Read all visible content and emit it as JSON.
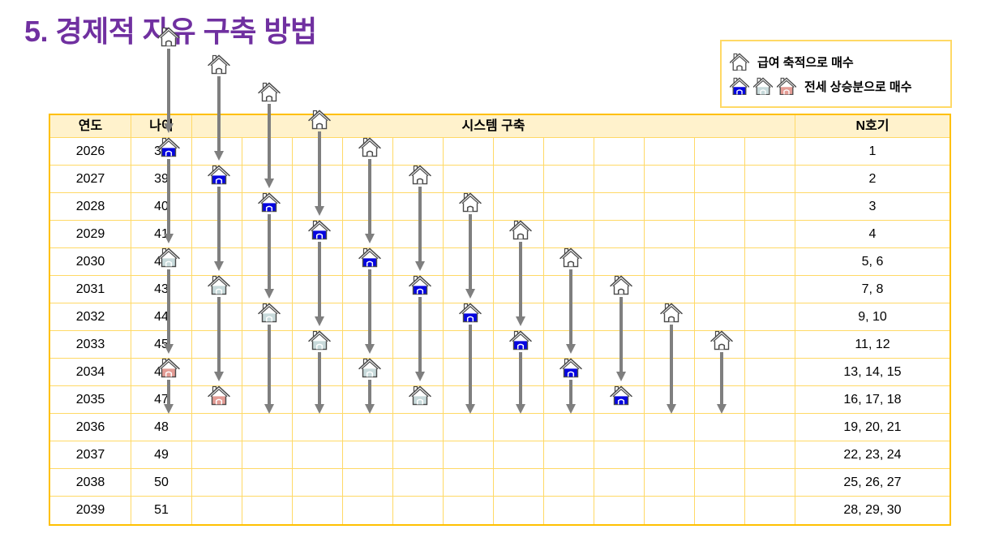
{
  "title": "5. 경제적 자유 구축 방법",
  "legend": {
    "items": [
      {
        "icons": [
          "white"
        ],
        "label": "급여 축적으로 매수"
      },
      {
        "icons": [
          "blue",
          "lightblue",
          "pink"
        ],
        "label": "전세 상승분으로 매수"
      }
    ]
  },
  "table": {
    "headers": {
      "year": "연도",
      "age": "나이",
      "system": "시스템 구축",
      "units": "N호기"
    },
    "columns": 12,
    "rows": [
      {
        "year": "2026",
        "age": "38",
        "units": "1"
      },
      {
        "year": "2027",
        "age": "39",
        "units": "2"
      },
      {
        "year": "2028",
        "age": "40",
        "units": "3"
      },
      {
        "year": "2029",
        "age": "41",
        "units": "4"
      },
      {
        "year": "2030",
        "age": "42",
        "units": "5, 6"
      },
      {
        "year": "2031",
        "age": "43",
        "units": "7, 8"
      },
      {
        "year": "2032",
        "age": "44",
        "units": "9, 10"
      },
      {
        "year": "2033",
        "age": "45",
        "units": "11, 12"
      },
      {
        "year": "2034",
        "age": "46",
        "units": "13, 14, 15"
      },
      {
        "year": "2035",
        "age": "47",
        "units": "16, 17, 18"
      },
      {
        "year": "2036",
        "age": "48",
        "units": "19, 20, 21"
      },
      {
        "year": "2037",
        "age": "49",
        "units": "22, 23, 24"
      },
      {
        "year": "2038",
        "age": "50",
        "units": "25, 26, 27"
      },
      {
        "year": "2039",
        "age": "51",
        "units": "28, 29, 30"
      }
    ],
    "houses": [
      {
        "r": 0,
        "c": 0,
        "color": "white"
      },
      {
        "r": 1,
        "c": 1,
        "color": "white"
      },
      {
        "r": 2,
        "c": 2,
        "color": "white"
      },
      {
        "r": 3,
        "c": 3,
        "color": "white"
      },
      {
        "r": 4,
        "c": 4,
        "color": "white"
      },
      {
        "r": 5,
        "c": 5,
        "color": "white"
      },
      {
        "r": 6,
        "c": 6,
        "color": "white"
      },
      {
        "r": 7,
        "c": 7,
        "color": "white"
      },
      {
        "r": 8,
        "c": 8,
        "color": "white"
      },
      {
        "r": 9,
        "c": 9,
        "color": "white"
      },
      {
        "r": 10,
        "c": 10,
        "color": "white"
      },
      {
        "r": 11,
        "c": 11,
        "color": "white"
      },
      {
        "r": 4,
        "c": 0,
        "color": "blue"
      },
      {
        "r": 5,
        "c": 1,
        "color": "blue"
      },
      {
        "r": 6,
        "c": 2,
        "color": "blue"
      },
      {
        "r": 7,
        "c": 3,
        "color": "blue"
      },
      {
        "r": 8,
        "c": 4,
        "color": "blue"
      },
      {
        "r": 9,
        "c": 5,
        "color": "blue"
      },
      {
        "r": 10,
        "c": 6,
        "color": "blue"
      },
      {
        "r": 11,
        "c": 7,
        "color": "blue"
      },
      {
        "r": 12,
        "c": 8,
        "color": "blue"
      },
      {
        "r": 13,
        "c": 9,
        "color": "blue"
      },
      {
        "r": 8,
        "c": 0,
        "color": "lightblue"
      },
      {
        "r": 9,
        "c": 1,
        "color": "lightblue"
      },
      {
        "r": 10,
        "c": 2,
        "color": "lightblue"
      },
      {
        "r": 11,
        "c": 3,
        "color": "lightblue"
      },
      {
        "r": 12,
        "c": 4,
        "color": "lightblue"
      },
      {
        "r": 13,
        "c": 5,
        "color": "lightblue"
      },
      {
        "r": 12,
        "c": 0,
        "color": "pink"
      },
      {
        "r": 13,
        "c": 1,
        "color": "pink"
      }
    ],
    "arrows": [
      {
        "c": 0,
        "from": 0,
        "to": 3
      },
      {
        "c": 0,
        "from": 4,
        "to": 7
      },
      {
        "c": 0,
        "from": 8,
        "to": 11
      },
      {
        "c": 0,
        "from": 12,
        "to": 13
      },
      {
        "c": 1,
        "from": 1,
        "to": 4
      },
      {
        "c": 1,
        "from": 5,
        "to": 8
      },
      {
        "c": 1,
        "from": 9,
        "to": 12
      },
      {
        "c": 2,
        "from": 2,
        "to": 5
      },
      {
        "c": 2,
        "from": 6,
        "to": 9
      },
      {
        "c": 2,
        "from": 10,
        "to": 13
      },
      {
        "c": 3,
        "from": 3,
        "to": 6
      },
      {
        "c": 3,
        "from": 7,
        "to": 10
      },
      {
        "c": 3,
        "from": 11,
        "to": 13
      },
      {
        "c": 4,
        "from": 4,
        "to": 7
      },
      {
        "c": 4,
        "from": 8,
        "to": 11
      },
      {
        "c": 4,
        "from": 12,
        "to": 13
      },
      {
        "c": 5,
        "from": 5,
        "to": 8
      },
      {
        "c": 5,
        "from": 9,
        "to": 12
      },
      {
        "c": 6,
        "from": 6,
        "to": 9
      },
      {
        "c": 6,
        "from": 10,
        "to": 13
      },
      {
        "c": 7,
        "from": 7,
        "to": 10
      },
      {
        "c": 7,
        "from": 11,
        "to": 13
      },
      {
        "c": 8,
        "from": 8,
        "to": 11
      },
      {
        "c": 8,
        "from": 12,
        "to": 13
      },
      {
        "c": 9,
        "from": 9,
        "to": 12
      },
      {
        "c": 10,
        "from": 10,
        "to": 13
      },
      {
        "c": 11,
        "from": 11,
        "to": 13
      }
    ]
  },
  "colors": {
    "title": "#7030A0",
    "table_border": "#FFC000",
    "grid_line": "#FFD966",
    "header_bg": "#FFF2CC",
    "arrow": "#7F7F7F",
    "house_outline": "#4A4A4A",
    "houses": {
      "white": "#FFFFFF",
      "blue": "#0505E0",
      "lightblue": "#C8DADB",
      "pink": "#E39C95"
    }
  }
}
